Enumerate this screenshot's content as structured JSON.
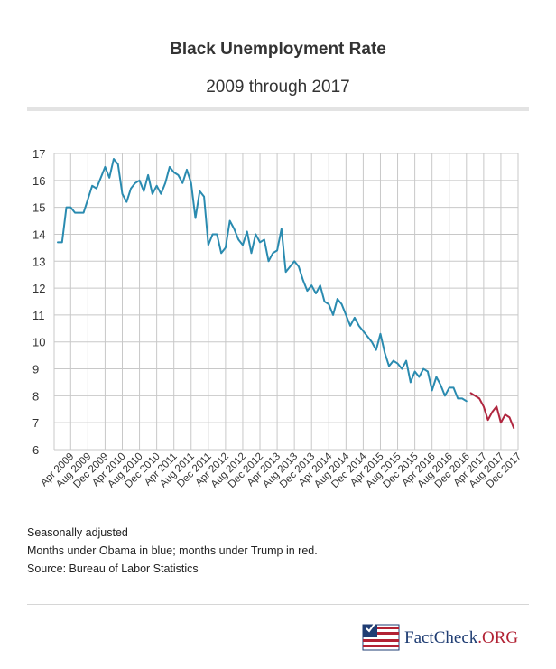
{
  "header": {
    "title": "Black Unemployment Rate",
    "subtitle": "2009 through 2017"
  },
  "notes": [
    "Seasonally adjusted",
    "Months under Obama in blue; months under Trump in red.",
    "Source: Bureau of Labor Statistics"
  ],
  "logo": {
    "name": "FactCheck",
    "domain": ".ORG"
  },
  "colors": {
    "obama": "#2a8bb0",
    "trump": "#b0263f",
    "grid": "#c8c8c8",
    "axis": "#333333"
  },
  "chart_data": {
    "type": "line",
    "title": "Black Unemployment Rate",
    "subtitle": "2009 through 2017",
    "ylim": [
      6,
      17
    ],
    "yticks": [
      6,
      7,
      8,
      9,
      10,
      11,
      12,
      13,
      14,
      15,
      16,
      17
    ],
    "x_start": "Jan 2009",
    "xtick_labels": [
      "Apr 2009",
      "Aug 2009",
      "Dec 2009",
      "Apr 2010",
      "Aug 2010",
      "Dec 2010",
      "Apr 2011",
      "Aug 2011",
      "Dec 2011",
      "Apr 2012",
      "Aug 2012",
      "Dec 2012",
      "Apr 2013",
      "Aug 2013",
      "Dec 2013",
      "Apr 2014",
      "Aug 2014",
      "Dec 2014",
      "Apr 2015",
      "Aug 2015",
      "Dec 2015",
      "Apr 2016",
      "Aug 2016",
      "Dec 2016",
      "Apr 2017",
      "Aug 2017",
      "Dec 2017"
    ],
    "xtick_month_index": [
      3,
      7,
      11,
      15,
      19,
      23,
      27,
      31,
      35,
      39,
      43,
      47,
      51,
      55,
      59,
      63,
      67,
      71,
      75,
      79,
      83,
      87,
      91,
      95,
      99,
      103,
      107
    ],
    "grid": true,
    "series": [
      {
        "name": "Obama",
        "color": "#2a8bb0",
        "start_month_index": 0,
        "values": [
          13.7,
          13.7,
          15.0,
          15.0,
          14.8,
          14.8,
          14.8,
          15.3,
          15.8,
          15.7,
          16.1,
          16.5,
          16.1,
          16.8,
          16.6,
          15.5,
          15.2,
          15.7,
          15.9,
          16.0,
          15.6,
          16.2,
          15.5,
          15.8,
          15.5,
          15.9,
          16.5,
          16.3,
          16.2,
          15.9,
          16.4,
          15.9,
          14.6,
          15.6,
          15.4,
          13.6,
          14.0,
          14.0,
          13.3,
          13.5,
          14.5,
          14.2,
          13.8,
          13.6,
          14.1,
          13.3,
          14.0,
          13.7,
          13.8,
          13.0,
          13.3,
          13.4,
          14.2,
          12.6,
          12.8,
          13.0,
          12.8,
          12.3,
          11.9,
          12.1,
          11.8,
          12.1,
          11.5,
          11.4,
          11.0,
          11.6,
          11.4,
          11.0,
          10.6,
          10.9,
          10.6,
          10.4,
          10.2,
          10.0,
          9.7,
          10.3,
          9.6,
          9.1,
          9.3,
          9.2,
          9.0,
          9.3,
          8.5,
          8.9,
          8.7,
          9.0,
          8.9,
          8.2,
          8.7,
          8.4,
          8.0,
          8.3,
          8.3,
          7.9,
          7.9,
          7.8
        ]
      },
      {
        "name": "Trump",
        "color": "#b0263f",
        "start_month_index": 96,
        "values": [
          8.1,
          8.0,
          7.9,
          7.6,
          7.1,
          7.4,
          7.6,
          7.0,
          7.3,
          7.2,
          6.8
        ]
      }
    ]
  }
}
